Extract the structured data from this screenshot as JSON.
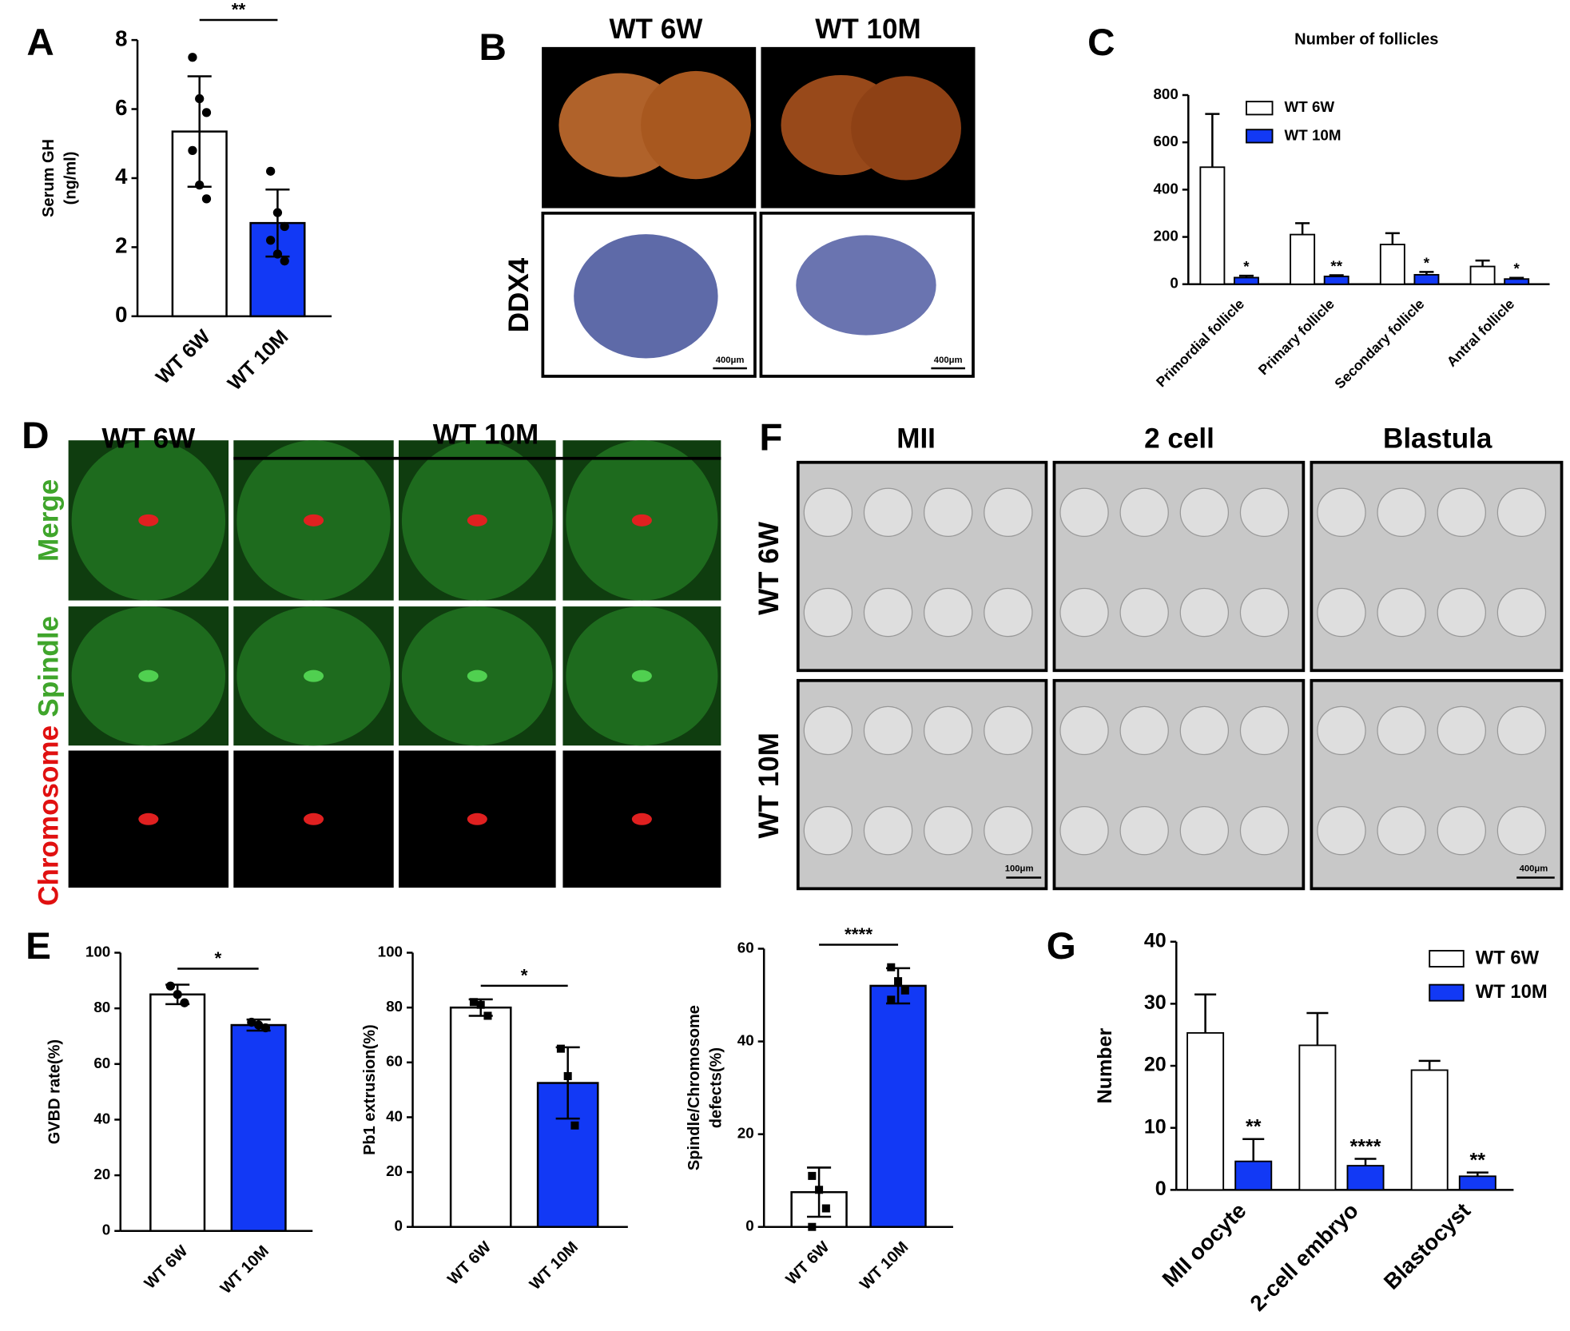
{
  "chart_data": [
    {
      "type": "bar",
      "panel": "A",
      "y_label": [
        "Serum GH",
        "(ng/ml)"
      ],
      "categories": [
        "WT 6W",
        "WT 10M"
      ],
      "colors": [
        "#ffffff",
        "#1239f5"
      ],
      "values": [
        5.35,
        2.7
      ],
      "errors": [
        1.6,
        0.97
      ],
      "points": [
        [
          7.5,
          6.3,
          5.9,
          4.8,
          3.8,
          3.4
        ],
        [
          4.2,
          3.0,
          2.6,
          2.2,
          1.8,
          1.6
        ]
      ],
      "marker": "circle",
      "significance": "**",
      "ylim": [
        0,
        8
      ],
      "yticks": [
        0,
        2,
        4,
        6,
        8
      ]
    },
    {
      "type": "grouped-bar",
      "panel": "C",
      "title": "Number of follicles",
      "categories": [
        "Primordial follicle",
        "Primary follicle",
        "Secondary follicle",
        "Antral follicle"
      ],
      "series": [
        {
          "name": "WT 6W",
          "color": "#ffffff",
          "values": [
            495,
            210,
            168,
            75
          ],
          "errors": [
            225,
            48,
            48,
            25
          ]
        },
        {
          "name": "WT 10M",
          "color": "#1239f5",
          "values": [
            28,
            33,
            40,
            22
          ],
          "errors": [
            8,
            5,
            12,
            5
          ],
          "significance": [
            "*",
            "**",
            "*",
            "*"
          ]
        }
      ],
      "ylim": [
        0,
        800
      ],
      "yticks": [
        0,
        200,
        400,
        600,
        800
      ]
    },
    {
      "type": "bar",
      "panel": "E",
      "y_label": [
        "GVBD rate(%)"
      ],
      "categories": [
        "WT 6W",
        "WT 10M"
      ],
      "colors": [
        "#ffffff",
        "#1239f5"
      ],
      "values": [
        85,
        74
      ],
      "errors": [
        3.5,
        2
      ],
      "points": [
        [
          88,
          85,
          82
        ],
        [
          75,
          74,
          73
        ]
      ],
      "marker": "circle",
      "significance": "*",
      "ylim": [
        0,
        100
      ],
      "yticks": [
        0,
        20,
        40,
        60,
        80,
        100
      ]
    },
    {
      "type": "bar",
      "y_label": [
        "Pb1 extrusion(%)"
      ],
      "categories": [
        "WT 6W",
        "WT 10M"
      ],
      "colors": [
        "#ffffff",
        "#1239f5"
      ],
      "values": [
        80,
        52.5
      ],
      "errors": [
        3,
        13
      ],
      "points": [
        [
          82,
          81,
          77
        ],
        [
          65,
          55,
          37
        ]
      ],
      "marker": "square",
      "significance": "*",
      "ylim": [
        0,
        100
      ],
      "yticks": [
        0,
        20,
        40,
        60,
        80,
        100
      ]
    },
    {
      "type": "bar",
      "y_label": [
        "Spindle/Chromosome",
        "defects(%)"
      ],
      "categories": [
        "WT 6W",
        "WT 10M"
      ],
      "colors": [
        "#ffffff",
        "#1239f5"
      ],
      "values": [
        7.5,
        52
      ],
      "errors": [
        5.3,
        3.8
      ],
      "points": [
        [
          11,
          8,
          4,
          0
        ],
        [
          56,
          53,
          51,
          49
        ]
      ],
      "marker": "square",
      "significance": "****",
      "ylim": [
        0,
        60
      ],
      "yticks": [
        0,
        20,
        40,
        60
      ]
    },
    {
      "type": "grouped-bar",
      "panel": "G",
      "y_label": [
        "Number"
      ],
      "categories": [
        "MII oocyte",
        "2-cell embryo",
        "Blastocyst"
      ],
      "series": [
        {
          "name": "WT 6W",
          "color": "#ffffff",
          "values": [
            25.3,
            23.3,
            19.3
          ],
          "errors": [
            6.2,
            5.2,
            1.5
          ]
        },
        {
          "name": "WT 10M",
          "color": "#1239f5",
          "values": [
            4.6,
            3.9,
            2.2
          ],
          "errors": [
            3.6,
            1.1,
            0.6
          ],
          "significance": [
            "**",
            "****",
            "**"
          ]
        }
      ],
      "ylim": [
        0,
        40
      ],
      "yticks": [
        0,
        10,
        20,
        30,
        40
      ]
    }
  ],
  "images": {
    "B": {
      "panel": "B",
      "columns": [
        "WT 6W",
        "WT 10M"
      ],
      "row_label": "DDX4",
      "scale_bars": [
        "400μm",
        "400μm"
      ]
    },
    "D": {
      "panel": "D",
      "columns": [
        "WT 6W",
        "WT 10M"
      ],
      "rows": [
        "Merge",
        "Spindle",
        "Chromosome"
      ]
    },
    "F": {
      "panel": "F",
      "columns": [
        "MII",
        "2 cell",
        "Blastula"
      ],
      "rows": [
        "WT 6W",
        "WT 10M"
      ],
      "scale_bars": [
        "100μm",
        "400μm"
      ]
    }
  }
}
